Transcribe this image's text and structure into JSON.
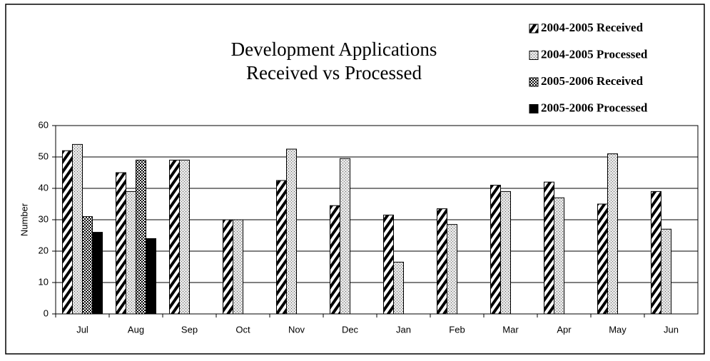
{
  "chart_data": {
    "type": "bar",
    "title": [
      "Development Applications",
      "Received vs Processed"
    ],
    "y_label": "Number",
    "categories": [
      "Jul",
      "Aug",
      "Sep",
      "Oct",
      "Nov",
      "Dec",
      "Jan",
      "Feb",
      "Mar",
      "Apr",
      "May",
      "Jun"
    ],
    "series": [
      {
        "name": "2004-2005 Received",
        "color": "#000000",
        "pattern": "diagonal",
        "values": [
          52,
          45,
          49,
          30,
          42.5,
          34.5,
          31.5,
          33.5,
          41,
          42,
          35,
          39
        ]
      },
      {
        "name": "2004-2005 Processed",
        "color": "#000000",
        "pattern": "speckle",
        "values": [
          54,
          39,
          49,
          30,
          52.5,
          49.5,
          16.5,
          28.5,
          39,
          37,
          51,
          27
        ]
      },
      {
        "name": "2005-2006 Received",
        "color": "#000000",
        "pattern": "checker",
        "values": [
          31,
          49,
          null,
          null,
          null,
          null,
          null,
          null,
          null,
          null,
          null,
          null
        ]
      },
      {
        "name": "2005-2006 Processed",
        "color": "#000000",
        "pattern": "solid",
        "values": [
          26,
          24,
          null,
          null,
          null,
          null,
          null,
          null,
          null,
          null,
          null,
          null
        ]
      }
    ],
    "ylim": [
      0,
      60
    ],
    "yticks": [
      0,
      10,
      20,
      30,
      40,
      50,
      60
    ],
    "grid": true,
    "legend": "top-right"
  }
}
